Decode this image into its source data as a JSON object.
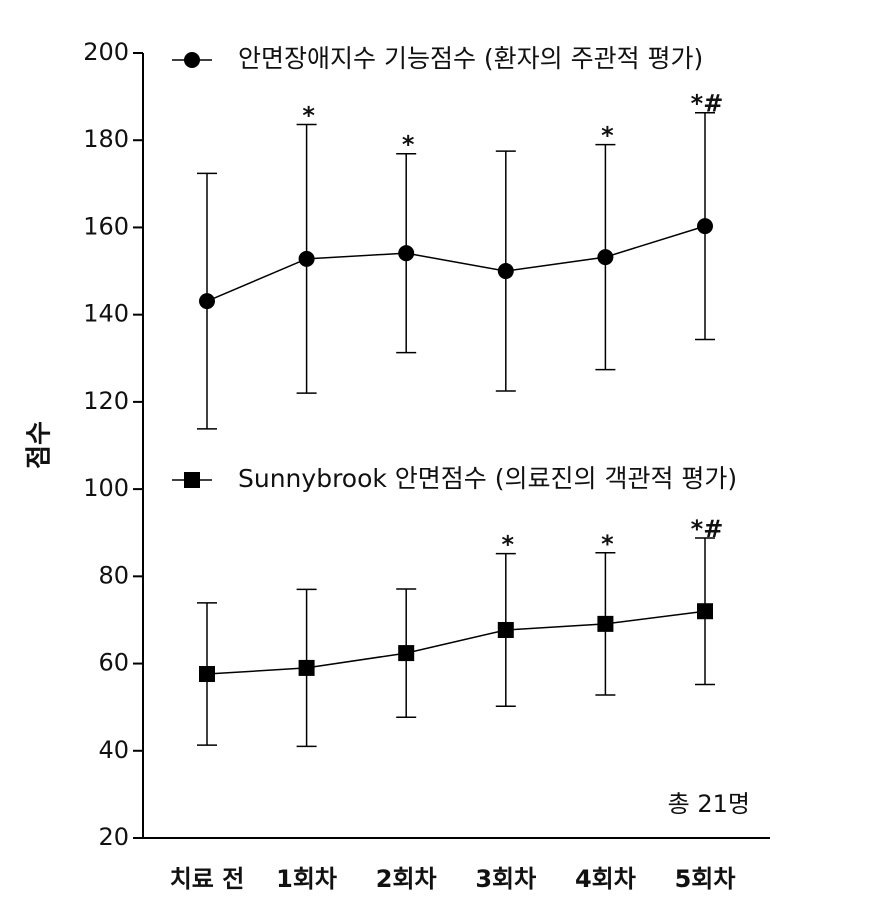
{
  "chart_data": {
    "type": "line",
    "y_label": "점수",
    "note": "총 21명",
    "categories": [
      "치료 전",
      "1회차",
      "2회차",
      "3회차",
      "4회차",
      "5회차"
    ],
    "ylim": [
      20,
      200
    ],
    "yticks": [
      20,
      40,
      60,
      80,
      100,
      120,
      140,
      160,
      180,
      200
    ],
    "series": [
      {
        "name": "안면장애지수 기능점수 (환자의 주관적 평가)",
        "color": "#000000",
        "marker": "circle",
        "values": [
          143.1,
          152.8,
          154.1,
          150.0,
          153.2,
          160.3
        ],
        "errors": [
          29.3,
          30.8,
          22.8,
          27.5,
          25.8,
          26.0
        ],
        "annotations": [
          null,
          "*",
          "*",
          null,
          "*",
          "*#"
        ]
      },
      {
        "name": "Sunnybrook 안면점수 (의료진의 객관적 평가)",
        "color": "#000000",
        "marker": "square",
        "values": [
          57.6,
          59.0,
          62.4,
          67.7,
          69.1,
          72.0
        ],
        "errors": [
          16.3,
          18.0,
          14.7,
          17.5,
          16.3,
          16.8
        ],
        "annotations": [
          null,
          null,
          null,
          "*",
          "*",
          "*#"
        ]
      }
    ]
  }
}
